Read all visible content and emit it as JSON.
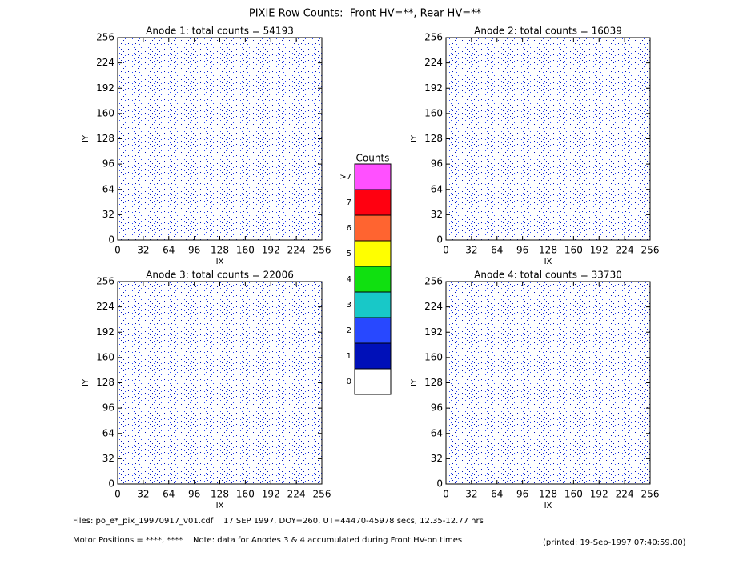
{
  "page_title": "PIXIE Row Counts:  Front HV=**, Rear HV=**",
  "chart_data": [
    {
      "type": "heatmap",
      "title": "Anode 1: total counts = 54193",
      "xlabel": "IX",
      "ylabel": "IY",
      "xlim": [
        0,
        256
      ],
      "ylim": [
        0,
        256
      ],
      "xticks": [
        0,
        32,
        64,
        96,
        128,
        160,
        192,
        224,
        256
      ],
      "yticks": [
        0,
        32,
        64,
        96,
        128,
        160,
        192,
        224,
        256
      ]
    },
    {
      "type": "heatmap",
      "title": "Anode 2: total counts = 16039",
      "xlabel": "IX",
      "ylabel": "IY",
      "xlim": [
        0,
        256
      ],
      "ylim": [
        0,
        256
      ],
      "xticks": [
        0,
        32,
        64,
        96,
        128,
        160,
        192,
        224,
        256
      ],
      "yticks": [
        0,
        32,
        64,
        96,
        128,
        160,
        192,
        224,
        256
      ]
    },
    {
      "type": "heatmap",
      "title": "Anode 3: total counts = 22006",
      "xlabel": "IX",
      "ylabel": "IY",
      "xlim": [
        0,
        256
      ],
      "ylim": [
        0,
        256
      ],
      "xticks": [
        0,
        32,
        64,
        96,
        128,
        160,
        192,
        224,
        256
      ],
      "yticks": [
        0,
        32,
        64,
        96,
        128,
        160,
        192,
        224,
        256
      ]
    },
    {
      "type": "heatmap",
      "title": "Anode 4: total counts = 33730",
      "xlabel": "IX",
      "ylabel": "IY",
      "xlim": [
        0,
        256
      ],
      "ylim": [
        0,
        256
      ],
      "xticks": [
        0,
        32,
        64,
        96,
        128,
        160,
        192,
        224,
        256
      ],
      "yticks": [
        0,
        32,
        64,
        96,
        128,
        160,
        192,
        224,
        256
      ]
    }
  ],
  "colorbar": {
    "title": "Counts",
    "labels": [
      "0",
      "1",
      "2",
      "3",
      "4",
      "5",
      "6",
      "7",
      ">7"
    ],
    "colors": [
      "#ffffff",
      "#0010b8",
      "#2848ff",
      "#18c8c8",
      "#10e010",
      "#ffff00",
      "#ff6430",
      "#ff0010",
      "#ff50ff"
    ]
  },
  "footer": {
    "files": "Files: po_e*_pix_19970917_v01.cdf    17 SEP 1997, DOY=260, UT=44470-45978 secs, 12.35-12.77 hrs",
    "motor": "Motor Positions = ****, ****    Note: data for Anodes 3 & 4 accumulated during Front HV-on times",
    "printed": "(printed: 19-Sep-1997 07:40:59.00)"
  }
}
